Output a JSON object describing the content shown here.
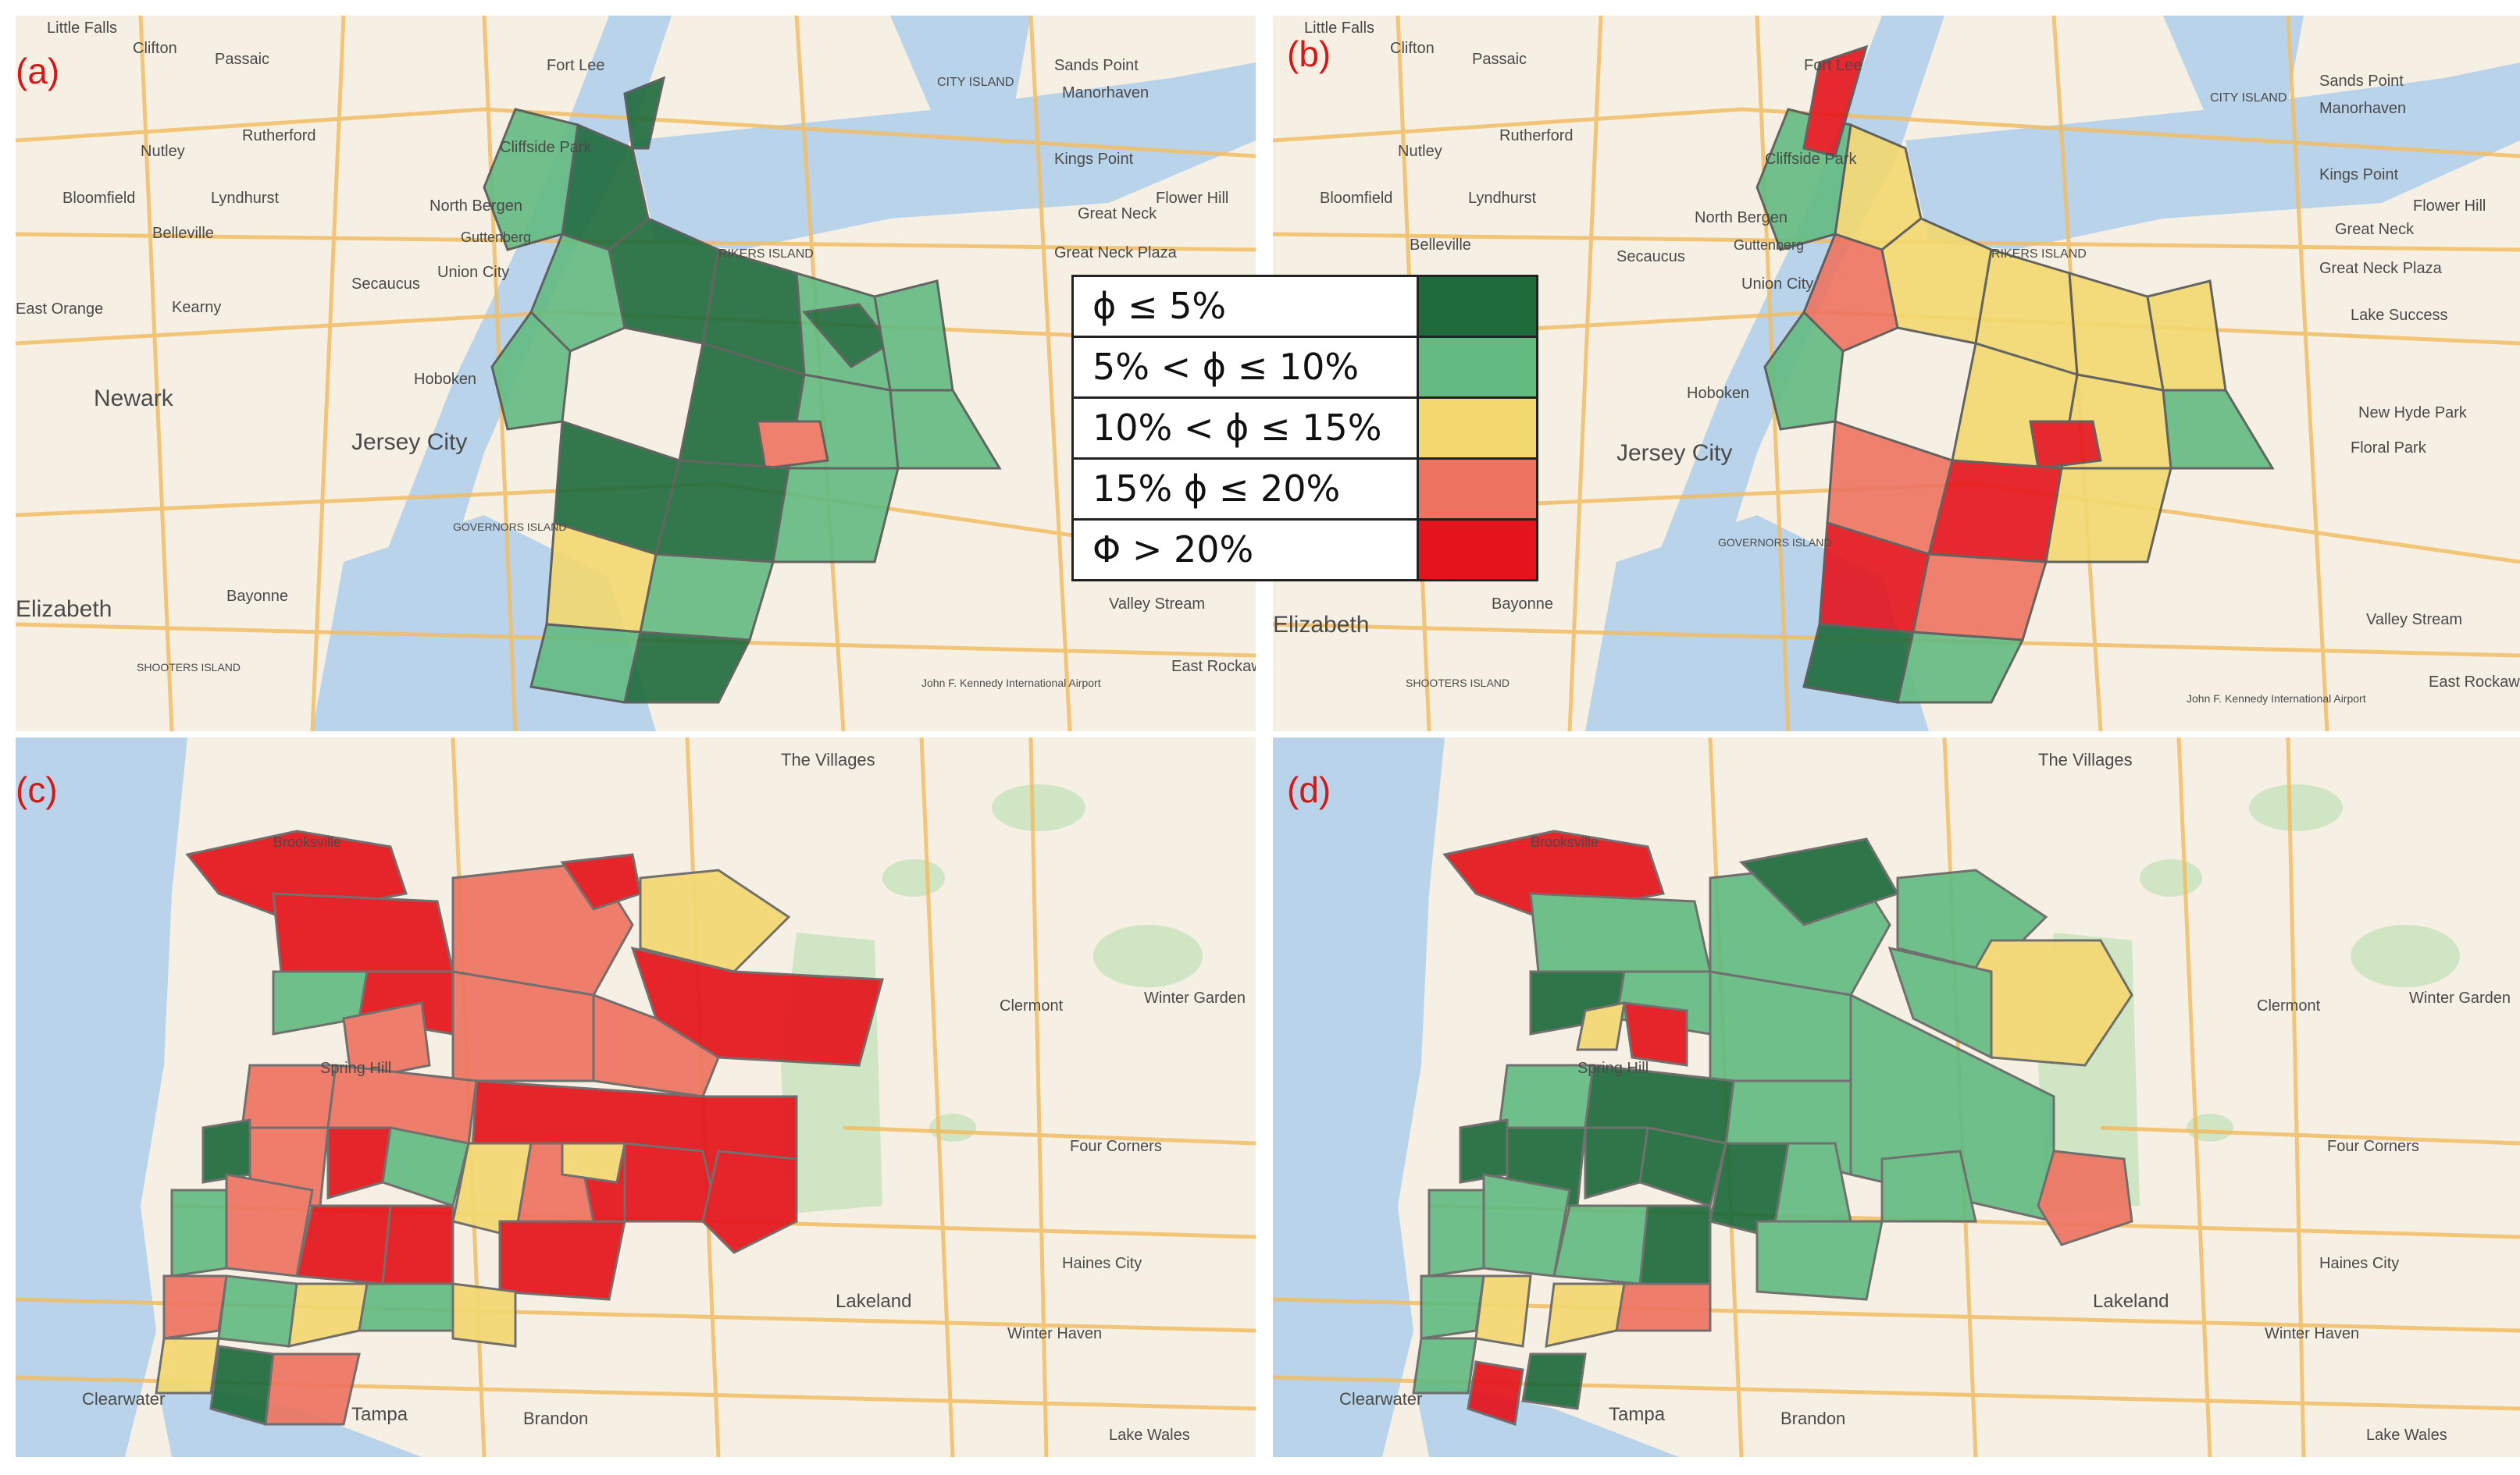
{
  "panels": [
    {
      "label": "(a)",
      "places": [
        "Little Falls",
        "Clifton",
        "Passaic",
        "Fort Lee",
        "Nutley",
        "Rutherford",
        "Bloomfield",
        "Lyndhurst",
        "North Bergen",
        "Cliffside Park",
        "Guttenberg",
        "Belleville",
        "Secaucus",
        "Union City",
        "East Orange",
        "Kearny",
        "Newark",
        "Hoboken",
        "Jersey City",
        "Bayonne",
        "Elizabeth",
        "Sands Point",
        "Manorhaven",
        "Kings Point",
        "Great Neck",
        "Flower Hill",
        "Great Neck Plaza",
        "Valley Stream",
        "East Rockaway",
        "RIKERS ISLAND",
        "GOVERNORS ISLAND",
        "SHOOTERS ISLAND",
        "CITY ISLAND",
        "John F. Kennedy International Airport"
      ]
    },
    {
      "label": "(b)",
      "places": [
        "Little Falls",
        "Clifton",
        "Passaic",
        "Fort Lee",
        "Nutley",
        "Rutherford",
        "Bloomfield",
        "Lyndhurst",
        "North Bergen",
        "Cliffside Park",
        "Guttenberg",
        "Belleville",
        "Secaucus",
        "Union City",
        "Hoboken",
        "Jersey City",
        "Bayonne",
        "Elizabeth",
        "Sands Point",
        "Manorhaven",
        "Kings Point",
        "Great Neck",
        "Flower Hill",
        "Great Neck Plaza",
        "Lake Success",
        "New Hyde Park",
        "Floral Park",
        "Valley Stream",
        "East Rockaway",
        "RIKERS ISLAND",
        "GOVERNORS ISLAND",
        "SHOOTERS ISLAND",
        "CITY ISLAND",
        "John F. Kennedy International Airport"
      ]
    },
    {
      "label": "(c)",
      "places": [
        "The Villages",
        "Clermont",
        "Winter Garden",
        "Spring Hill",
        "Four Corners",
        "Haines City",
        "Lakeland",
        "Winter Haven",
        "Tampa",
        "Brandon",
        "Lake Wales",
        "Clearwater",
        "Brooksville"
      ]
    },
    {
      "label": "(d)",
      "places": [
        "The Villages",
        "Clermont",
        "Winter Garden",
        "Spring Hill",
        "Four Corners",
        "Haines City",
        "Lakeland",
        "Winter Haven",
        "Tampa",
        "Brandon",
        "Lake Wales",
        "Clearwater",
        "Brooksville"
      ]
    }
  ],
  "legend": [
    {
      "label": "ϕ ≤ 5%",
      "color": "#1e6b3c"
    },
    {
      "label": "5% < ϕ ≤ 10%",
      "color": "#63bb82"
    },
    {
      "label": "10% < ϕ ≤ 15%",
      "color": "#f3d870"
    },
    {
      "label": "15% ϕ ≤ 20%",
      "color": "#ee7461"
    },
    {
      "label": "Φ > 20%",
      "color": "#e5141c"
    }
  ],
  "colors": {
    "map_land": "#f6efe4",
    "map_water": "#b9d3ea",
    "map_road": "#f2bd63",
    "map_green": "#cfe5c4",
    "label_red": "#d11a1a"
  }
}
